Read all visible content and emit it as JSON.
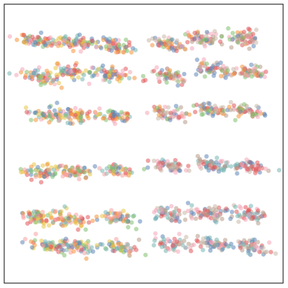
{
  "chart_data": {
    "type": "scatter",
    "title": "",
    "xlabel": "",
    "ylabel": "",
    "grid": false,
    "legend": "none",
    "axes_visible": false,
    "xlim": [
      0,
      100
    ],
    "ylim": [
      0,
      100
    ],
    "point_opacity": 0.55,
    "palettes": {
      "warm": [
        "#e8c547",
        "#f5943a",
        "#5f86b8",
        "#e15759",
        "#82c06e",
        "#76b7b2",
        "#f4a6b8"
      ],
      "cool": [
        "#f5943a",
        "#5f86b8",
        "#f4a6b8",
        "#c8b8a8",
        "#82c06e",
        "#e15759",
        "#b79a88"
      ],
      "pastel": [
        "#f7a0a0",
        "#e8c547",
        "#82c06e",
        "#76b7b2",
        "#5f86b8",
        "#e15759",
        "#f5943a"
      ],
      "earth": [
        "#b79a88",
        "#76b7b2",
        "#e15759",
        "#5f86b8",
        "#f4a6b8",
        "#c8b8a8"
      ]
    },
    "clusters": [
      {
        "panel": "top-left",
        "palette": "warm",
        "cx": 13.0,
        "cy": 87.0,
        "wx": 6.2,
        "wy": 2.5,
        "n": 65
      },
      {
        "panel": "top-left",
        "palette": "warm",
        "cx": 24.5,
        "cy": 86.5,
        "wx": 7.4,
        "wy": 2.4,
        "n": 70
      },
      {
        "panel": "top-left",
        "palette": "warm",
        "cx": 39.5,
        "cy": 85.5,
        "wx": 6.0,
        "wy": 2.6,
        "n": 60
      },
      {
        "panel": "top-left",
        "palette": "warm",
        "cx": 12.5,
        "cy": 74.0,
        "wx": 5.8,
        "wy": 2.8,
        "n": 60
      },
      {
        "panel": "top-left",
        "palette": "warm",
        "cx": 23.5,
        "cy": 75.5,
        "wx": 5.8,
        "wy": 2.6,
        "n": 60
      },
      {
        "panel": "top-left",
        "palette": "warm",
        "cx": 38.5,
        "cy": 75.0,
        "wx": 6.0,
        "wy": 2.6,
        "n": 60
      },
      {
        "panel": "top-left",
        "palette": "warm",
        "cx": 15.5,
        "cy": 60.0,
        "wx": 6.2,
        "wy": 2.6,
        "n": 60
      },
      {
        "panel": "top-left",
        "palette": "warm",
        "cx": 25.5,
        "cy": 60.5,
        "wx": 6.2,
        "wy": 2.6,
        "n": 60
      },
      {
        "panel": "top-left",
        "palette": "warm",
        "cx": 39.5,
        "cy": 60.0,
        "wx": 6.0,
        "wy": 2.6,
        "n": 55
      },
      {
        "panel": "top-right",
        "palette": "cool",
        "cx": 58.5,
        "cy": 86.0,
        "wx": 5.8,
        "wy": 2.6,
        "n": 55
      },
      {
        "panel": "top-right",
        "palette": "cool",
        "cx": 72.0,
        "cy": 88.0,
        "wx": 5.8,
        "wy": 2.6,
        "n": 60
      },
      {
        "panel": "top-right",
        "palette": "cool",
        "cx": 86.5,
        "cy": 88.0,
        "wx": 5.6,
        "wy": 2.8,
        "n": 60
      },
      {
        "panel": "top-right",
        "palette": "cool",
        "cx": 59.5,
        "cy": 74.5,
        "wx": 5.8,
        "wy": 2.6,
        "n": 55
      },
      {
        "panel": "top-right",
        "palette": "cool",
        "cx": 75.0,
        "cy": 77.0,
        "wx": 6.0,
        "wy": 2.8,
        "n": 60
      },
      {
        "panel": "top-right",
        "palette": "cool",
        "cx": 88.0,
        "cy": 76.0,
        "wx": 5.4,
        "wy": 2.8,
        "n": 55
      },
      {
        "panel": "top-right",
        "palette": "cool",
        "cx": 59.5,
        "cy": 61.0,
        "wx": 5.6,
        "wy": 2.4,
        "n": 50
      },
      {
        "panel": "top-right",
        "palette": "cool",
        "cx": 74.0,
        "cy": 62.0,
        "wx": 6.0,
        "wy": 2.6,
        "n": 55
      },
      {
        "panel": "top-right",
        "palette": "cool",
        "cx": 87.5,
        "cy": 62.0,
        "wx": 5.4,
        "wy": 2.6,
        "n": 50
      },
      {
        "panel": "bottom-left",
        "palette": "pastel",
        "cx": 13.5,
        "cy": 39.5,
        "wx": 6.0,
        "wy": 2.8,
        "n": 55
      },
      {
        "panel": "bottom-left",
        "palette": "pastel",
        "cx": 25.0,
        "cy": 40.0,
        "wx": 6.2,
        "wy": 2.8,
        "n": 60
      },
      {
        "panel": "bottom-left",
        "palette": "pastel",
        "cx": 40.0,
        "cy": 40.5,
        "wx": 5.6,
        "wy": 2.6,
        "n": 50
      },
      {
        "panel": "bottom-left",
        "palette": "pastel",
        "cx": 12.5,
        "cy": 23.5,
        "wx": 6.0,
        "wy": 2.8,
        "n": 60
      },
      {
        "panel": "bottom-left",
        "palette": "pastel",
        "cx": 24.0,
        "cy": 23.0,
        "wx": 6.2,
        "wy": 3.0,
        "n": 60
      },
      {
        "panel": "bottom-left",
        "palette": "pastel",
        "cx": 40.0,
        "cy": 23.5,
        "wx": 5.8,
        "wy": 2.8,
        "n": 55
      },
      {
        "panel": "bottom-left",
        "palette": "pastel",
        "cx": 15.5,
        "cy": 13.0,
        "wx": 6.0,
        "wy": 2.6,
        "n": 55
      },
      {
        "panel": "bottom-left",
        "palette": "pastel",
        "cx": 25.5,
        "cy": 13.0,
        "wx": 6.0,
        "wy": 2.6,
        "n": 55
      },
      {
        "panel": "bottom-left",
        "palette": "pastel",
        "cx": 41.0,
        "cy": 12.5,
        "wx": 5.6,
        "wy": 2.6,
        "n": 50
      },
      {
        "panel": "bottom-right",
        "palette": "earth",
        "cx": 59.5,
        "cy": 42.0,
        "wx": 6.0,
        "wy": 2.4,
        "n": 55
      },
      {
        "panel": "bottom-right",
        "palette": "earth",
        "cx": 75.0,
        "cy": 42.0,
        "wx": 6.0,
        "wy": 2.6,
        "n": 60
      },
      {
        "panel": "bottom-right",
        "palette": "earth",
        "cx": 87.5,
        "cy": 41.5,
        "wx": 5.8,
        "wy": 2.6,
        "n": 55
      },
      {
        "panel": "bottom-right",
        "palette": "earth",
        "cx": 59.5,
        "cy": 24.5,
        "wx": 5.8,
        "wy": 2.6,
        "n": 55
      },
      {
        "panel": "bottom-right",
        "palette": "earth",
        "cx": 74.0,
        "cy": 24.5,
        "wx": 6.2,
        "wy": 2.6,
        "n": 60
      },
      {
        "panel": "bottom-right",
        "palette": "earth",
        "cx": 88.0,
        "cy": 25.0,
        "wx": 5.8,
        "wy": 2.6,
        "n": 55
      },
      {
        "panel": "bottom-right",
        "palette": "earth",
        "cx": 60.0,
        "cy": 14.0,
        "wx": 5.8,
        "wy": 2.6,
        "n": 55
      },
      {
        "panel": "bottom-right",
        "palette": "earth",
        "cx": 75.0,
        "cy": 13.5,
        "wx": 6.0,
        "wy": 2.6,
        "n": 55
      },
      {
        "panel": "bottom-right",
        "palette": "earth",
        "cx": 89.0,
        "cy": 13.0,
        "wx": 5.6,
        "wy": 2.6,
        "n": 50
      }
    ]
  }
}
